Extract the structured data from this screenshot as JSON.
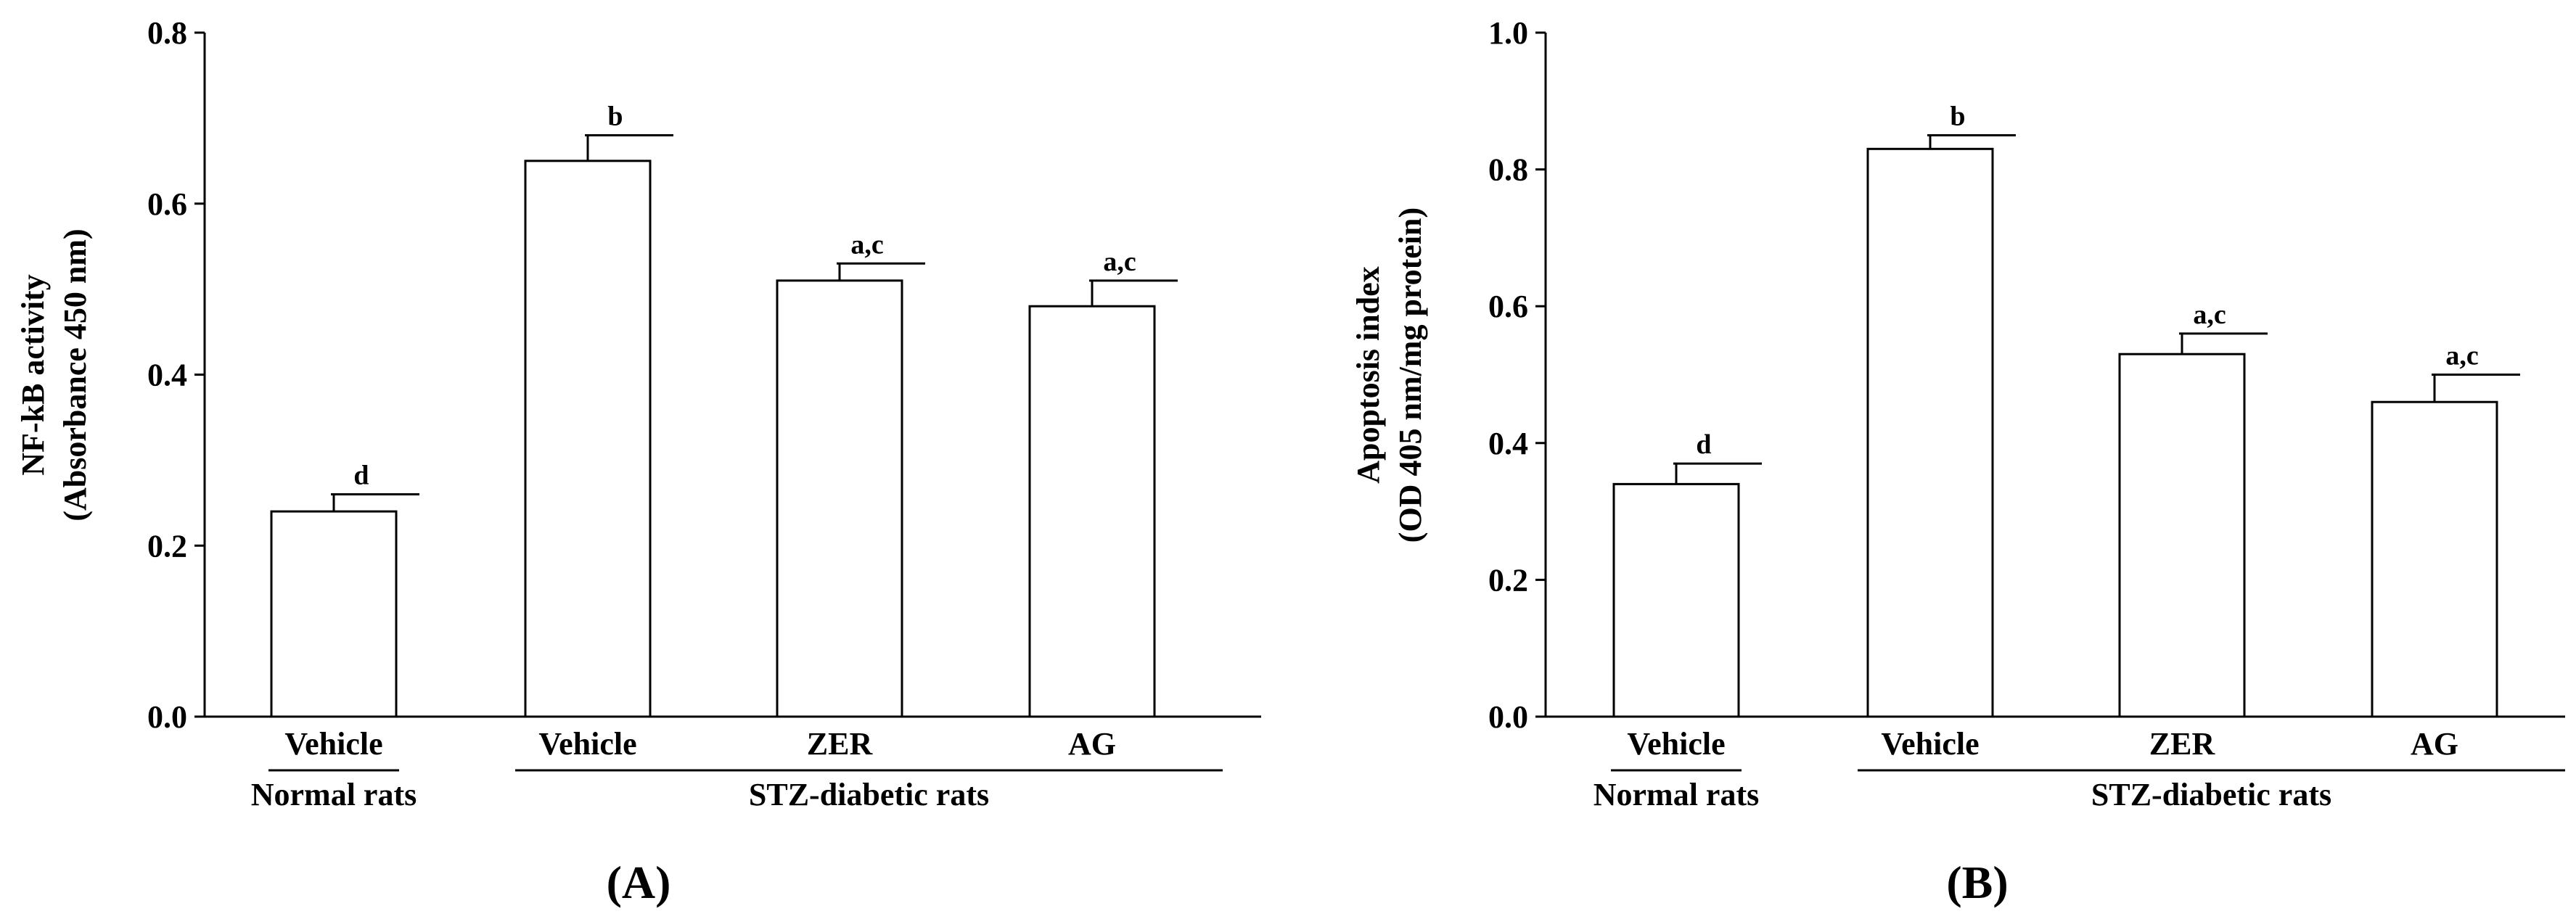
{
  "chart_data": [
    {
      "type": "bar",
      "panel_label": "(A)",
      "ylabel_lines": [
        "NF-kB activity",
        "(Absorbance 450 nm)"
      ],
      "ylim": [
        0,
        0.8
      ],
      "yticks": [
        "0.0",
        "0.2",
        "0.4",
        "0.6",
        "0.8"
      ],
      "categories": [
        "Vehicle",
        "Vehicle",
        "ZER",
        "AG"
      ],
      "values": [
        0.24,
        0.65,
        0.51,
        0.48
      ],
      "errors": [
        0.02,
        0.03,
        0.02,
        0.03
      ],
      "significance": [
        "d",
        "b",
        "a,c",
        "a,c"
      ],
      "groups": [
        {
          "label": "Normal rats",
          "members": [
            0
          ]
        },
        {
          "label": "STZ-diabetic rats",
          "members": [
            1,
            2,
            3
          ]
        }
      ]
    },
    {
      "type": "bar",
      "panel_label": "(B)",
      "ylabel_lines": [
        "Apoptosis index",
        "(OD 405 nm/mg protein)"
      ],
      "ylim": [
        0,
        1.0
      ],
      "yticks": [
        "0.0",
        "0.2",
        "0.4",
        "0.6",
        "0.8",
        "1.0"
      ],
      "categories": [
        "Vehicle",
        "Vehicle",
        "ZER",
        "AG"
      ],
      "values": [
        0.34,
        0.83,
        0.53,
        0.46
      ],
      "errors": [
        0.03,
        0.02,
        0.03,
        0.04
      ],
      "significance": [
        "d",
        "b",
        "a,c",
        "a,c"
      ],
      "groups": [
        {
          "label": "Normal rats",
          "members": [
            0
          ]
        },
        {
          "label": "STZ-diabetic rats",
          "members": [
            1,
            2,
            3
          ]
        }
      ]
    }
  ]
}
